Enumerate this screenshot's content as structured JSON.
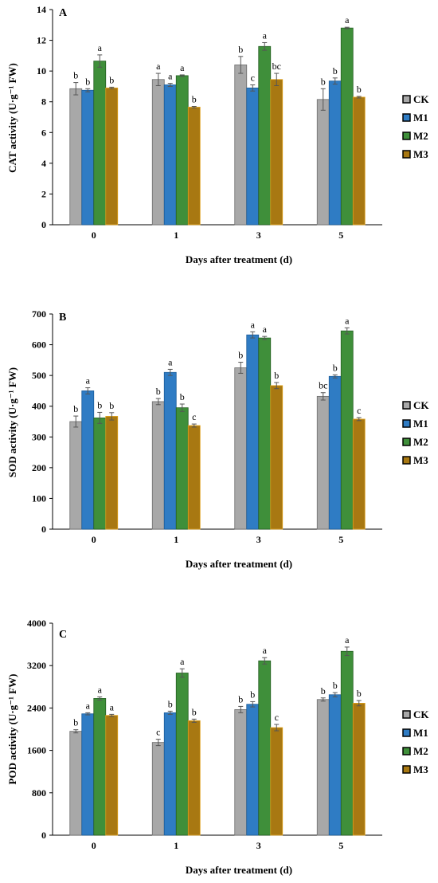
{
  "chart_data": [
    {
      "panel": "A",
      "type": "bar",
      "xlabel": "Days after treatment (d)",
      "ylabel": "CAT activity (U·g⁻¹ FW)",
      "ylim": [
        0,
        14
      ],
      "yticks": [
        0,
        2,
        4,
        6,
        8,
        10,
        12,
        14
      ],
      "categories": [
        "0",
        "1",
        "3",
        "5"
      ],
      "series": [
        {
          "name": "CK",
          "values": [
            8.85,
            9.45,
            10.4,
            8.15
          ],
          "errors": [
            0.4,
            0.4,
            0.55,
            0.7
          ],
          "letters": [
            "b",
            "a",
            "b",
            "b"
          ]
        },
        {
          "name": "M1",
          "values": [
            8.75,
            9.1,
            8.9,
            9.35
          ],
          "errors": [
            0.1,
            0.1,
            0.2,
            0.2
          ],
          "letters": [
            "b",
            "a",
            "c",
            "b"
          ]
        },
        {
          "name": "M2",
          "values": [
            10.65,
            9.7,
            11.6,
            12.8
          ],
          "errors": [
            0.4,
            0.05,
            0.25,
            0.05
          ],
          "letters": [
            "a",
            "a",
            "a",
            "a"
          ]
        },
        {
          "name": "M3",
          "values": [
            8.9,
            7.65,
            9.45,
            8.3
          ],
          "errors": [
            0.05,
            0.05,
            0.4,
            0.05
          ],
          "letters": [
            "b",
            "b",
            "bc",
            "b"
          ]
        }
      ]
    },
    {
      "panel": "B",
      "type": "bar",
      "xlabel": "Days after treatment (d)",
      "ylabel": "SOD activity (U·g⁻¹ FW)",
      "ylim": [
        0,
        700
      ],
      "yticks": [
        0,
        100,
        200,
        300,
        400,
        500,
        600,
        700
      ],
      "categories": [
        "0",
        "1",
        "3",
        "5"
      ],
      "series": [
        {
          "name": "CK",
          "values": [
            350,
            415,
            525,
            432
          ],
          "errors": [
            18,
            10,
            18,
            12
          ],
          "letters": [
            "b",
            "b",
            "b",
            "bc"
          ]
        },
        {
          "name": "M1",
          "values": [
            450,
            510,
            632,
            497
          ],
          "errors": [
            10,
            10,
            10,
            5
          ],
          "letters": [
            "a",
            "a",
            "a",
            "b"
          ]
        },
        {
          "name": "M2",
          "values": [
            362,
            395,
            622,
            645
          ],
          "errors": [
            18,
            12,
            5,
            10
          ],
          "letters": [
            "b",
            "b",
            "a",
            "a"
          ]
        },
        {
          "name": "M3",
          "values": [
            367,
            337,
            467,
            358
          ],
          "errors": [
            12,
            5,
            10,
            5
          ],
          "letters": [
            "b",
            "c",
            "b",
            "c"
          ]
        }
      ]
    },
    {
      "panel": "C",
      "type": "bar",
      "xlabel": "Days after treatment (d)",
      "ylabel": "POD activity (U·g⁻¹ FW)",
      "ylim": [
        0,
        4000
      ],
      "yticks": [
        0,
        800,
        1600,
        2400,
        3200,
        4000
      ],
      "categories": [
        "0",
        "1",
        "3",
        "5"
      ],
      "series": [
        {
          "name": "CK",
          "values": [
            1960,
            1750,
            2370,
            2560
          ],
          "errors": [
            30,
            60,
            60,
            30
          ],
          "letters": [
            "b",
            "c",
            "b",
            "b"
          ]
        },
        {
          "name": "M1",
          "values": [
            2290,
            2310,
            2470,
            2650
          ],
          "errors": [
            20,
            30,
            50,
            40
          ],
          "letters": [
            "a",
            "b",
            "b",
            "b"
          ]
        },
        {
          "name": "M2",
          "values": [
            2580,
            3060,
            3290,
            3470
          ],
          "errors": [
            30,
            80,
            60,
            80
          ],
          "letters": [
            "a",
            "a",
            "a",
            "a"
          ]
        },
        {
          "name": "M3",
          "values": [
            2260,
            2160,
            2030,
            2490
          ],
          "errors": [
            20,
            30,
            60,
            50
          ],
          "letters": [
            "a",
            "b",
            "c",
            "b"
          ]
        }
      ]
    }
  ],
  "colors": {
    "CK": "#a8a8a8",
    "M1": "#2f7cc4",
    "M2": "#3f8f3a",
    "M3": "#a87812",
    "M3_edge": "#e0a21c"
  }
}
